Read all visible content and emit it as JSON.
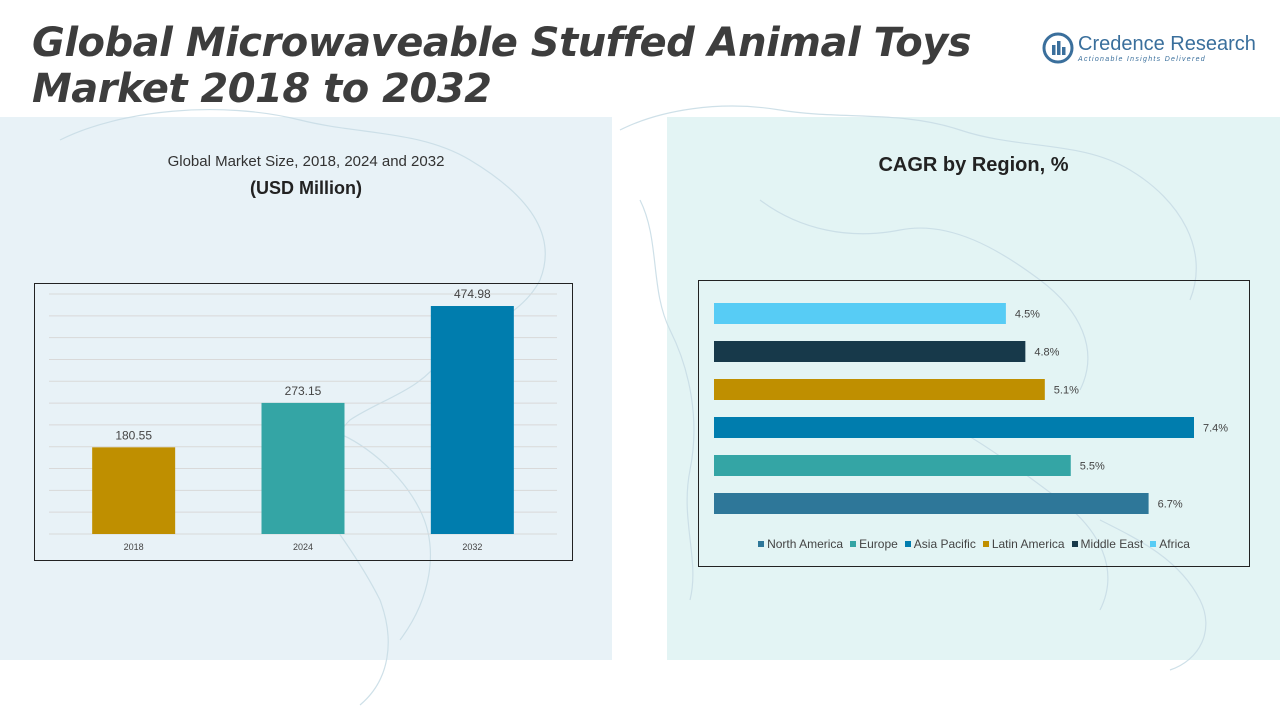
{
  "header": {
    "title_line1": "Global Microwaveable Stuffed Animal Toys",
    "title_line2": "Market 2018 to 2032"
  },
  "logo": {
    "name": "Credence Research",
    "tagline": "Actionable Insights Delivered",
    "color": "#3a6f9c"
  },
  "left_panel": {
    "title": "Global Market Size, 2018, 2024 and 2032",
    "subtitle": "(USD Million)"
  },
  "right_panel": {
    "title": "CAGR by Region, %"
  },
  "chart_data": [
    {
      "type": "bar",
      "categories": [
        "2018",
        "2024",
        "2032"
      ],
      "values": [
        180.55,
        273.15,
        474.98
      ],
      "value_labels": [
        "180.55",
        "273.15",
        "474.98"
      ],
      "colors": [
        "#bf8f00",
        "#34a5a5",
        "#007dae"
      ],
      "title": "Global Market Size, 2018, 2024 and 2032",
      "subtitle": "(USD Million)",
      "ylim": [
        0,
        500
      ],
      "grid": true
    },
    {
      "type": "bar",
      "orientation": "horizontal",
      "title": "CAGR by Region, %",
      "categories": [
        "Africa",
        "Middle East",
        "Latin America",
        "Asia Pacific",
        "Europe",
        "North America"
      ],
      "values": [
        4.5,
        4.8,
        5.1,
        7.4,
        5.5,
        6.7
      ],
      "value_labels": [
        "4.5%",
        "4.8%",
        "5.1%",
        "7.4%",
        "5.5%",
        "6.7%"
      ],
      "colors": [
        "#57ccf5",
        "#17394a",
        "#bf8f00",
        "#007dae",
        "#34a5a5",
        "#2e7799"
      ],
      "xlim": [
        0,
        7.4
      ],
      "legend_position": "bottom",
      "legend": [
        {
          "name": "North America",
          "color": "#2e7799"
        },
        {
          "name": "Europe",
          "color": "#34a5a5"
        },
        {
          "name": "Asia Pacific",
          "color": "#007dae"
        },
        {
          "name": "Latin America",
          "color": "#bf8f00"
        },
        {
          "name": "Middle East",
          "color": "#17394a"
        },
        {
          "name": "Africa",
          "color": "#57ccf5"
        }
      ]
    }
  ]
}
